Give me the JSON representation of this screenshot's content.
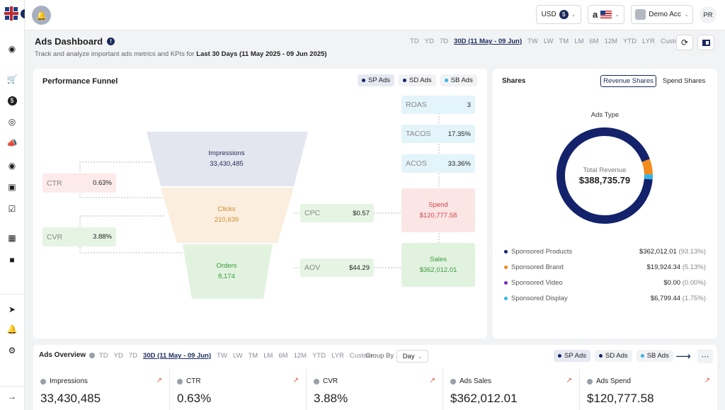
{
  "topbar": {
    "currency": "USD",
    "currency_symbol": "$",
    "marketplace_logo": "a",
    "account": "Demo Acc",
    "user_initials": "PR"
  },
  "header": {
    "title": "Ads Dashboard",
    "subtitle_prefix": "Track and analyze important ads metrics and KPIs for",
    "subtitle_range": "Last 30 Days (11 May 2025 - 09 Jun 2025)",
    "ranges": [
      "TD",
      "YD",
      "7D",
      "30D (11 May - 09 Jun)",
      "TW",
      "LW",
      "TM",
      "LM",
      "6M",
      "12M",
      "YTD",
      "LYR",
      "Custom"
    ],
    "active_range": "30D (11 May - 09 Jun)"
  },
  "funnel": {
    "title": "Performance Funnel",
    "ad_tabs": [
      "SP Ads",
      "SD Ads",
      "SB Ads"
    ],
    "impressions_label": "Impressions",
    "impressions_value": "33,430,485",
    "clicks_label": "Clicks",
    "clicks_value": "210,639",
    "orders_label": "Orders",
    "orders_value": "8,174",
    "ctr_label": "CTR",
    "ctr_value": "0.63%",
    "cvr_label": "CVR",
    "cvr_value": "3.88%",
    "cpc_label": "CPC",
    "cpc_value": "$0.57",
    "aov_label": "AOV",
    "aov_value": "$44.29",
    "roas_label": "ROAS",
    "roas_value": "3",
    "tacos_label": "TACOS",
    "tacos_value": "17.35%",
    "acos_label": "ACOS",
    "acos_value": "33.36%",
    "spend_label": "Spend",
    "spend_value": "$120,777.58",
    "sales_label": "Sales",
    "sales_value": "$362,012.01"
  },
  "shares": {
    "title": "Shares",
    "tab_revenue": "Revenue Shares",
    "tab_spend": "Spend Shares",
    "chart_title": "Ads Type",
    "center_label": "Total Revenue",
    "center_value": "$388,735.79",
    "legend": [
      {
        "name": "Sponsored Products",
        "value": "$362,012.01",
        "pct": "(93.13%)",
        "color": "#13226b"
      },
      {
        "name": "Sponsored Brand",
        "value": "$19,924.34",
        "pct": "(5.13%)",
        "color": "#f28b1c"
      },
      {
        "name": "Sponsored Video",
        "value": "$0.00",
        "pct": "(0.00%)",
        "color": "#7b2bb8"
      },
      {
        "name": "Sponsored Display",
        "value": "$6,799.44",
        "pct": "(1.75%)",
        "color": "#36b3e3"
      }
    ]
  },
  "overview": {
    "title": "Ads Overview",
    "ranges": [
      "TD",
      "YD",
      "7D",
      "30D (11 May - 09 Jun)",
      "TW",
      "LW",
      "TM",
      "LM",
      "6M",
      "12M",
      "YTD",
      "LYR",
      "Custom"
    ],
    "group_by_label": "Group By",
    "group_by_value": "Day",
    "ad_tabs": [
      "SP Ads",
      "SD Ads",
      "SB Ads"
    ],
    "kpis": [
      {
        "label": "Impressions",
        "value": "33,430,485"
      },
      {
        "label": "CTR",
        "value": "0.63%"
      },
      {
        "label": "CVR",
        "value": "3.88%"
      },
      {
        "label": "Ads Sales",
        "value": "$362,012.01"
      },
      {
        "label": "Ads Spend",
        "value": "$120,777.58"
      }
    ]
  },
  "colors": {
    "sp_dot": "#13226b",
    "sd_dot": "#13226b",
    "sb_dot": "#36b3e3"
  }
}
